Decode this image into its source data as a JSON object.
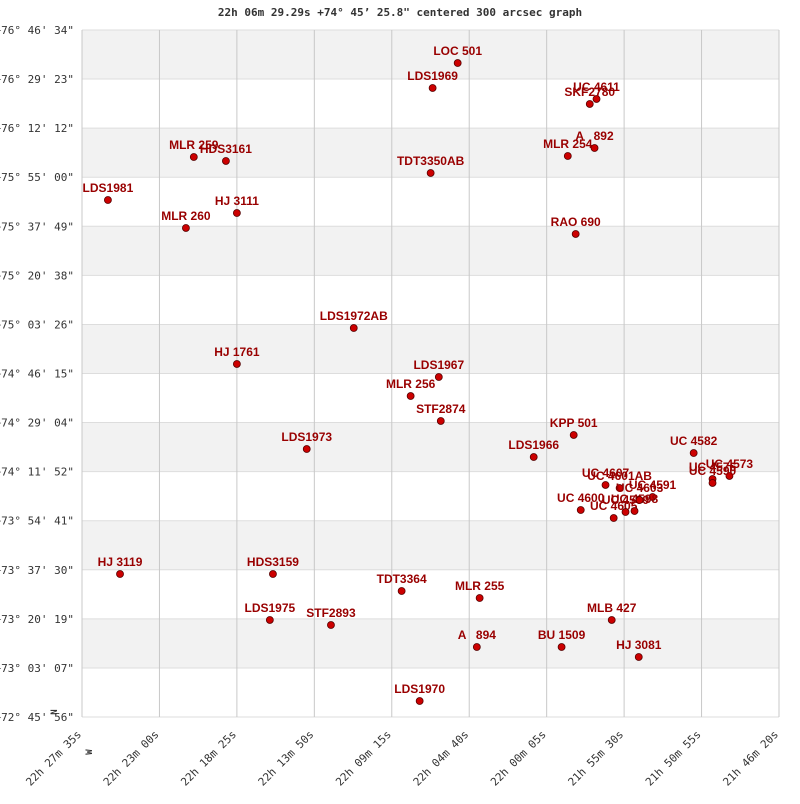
{
  "chart_data": {
    "type": "scatter",
    "title": "22h 06m 29.29s +74° 45’ 25.8\" centered 300 arcsec graph",
    "north_label": "N",
    "west_label": "W",
    "color": "#cc0000",
    "label_color": "#990000",
    "grid": true,
    "xlim": [
      80855,
      78380
    ],
    "xticks": [
      {
        "value": 80855,
        "label": "22h 27m 35s"
      },
      {
        "value": 80580,
        "label": "22h 23m 00s"
      },
      {
        "value": 80305,
        "label": "22h 18m 25s"
      },
      {
        "value": 80030,
        "label": "22h 13m 50s"
      },
      {
        "value": 79755,
        "label": "22h 09m 15s"
      },
      {
        "value": 79480,
        "label": "22h 04m 40s"
      },
      {
        "value": 79205,
        "label": "22h 00m 05s"
      },
      {
        "value": 78930,
        "label": "21h 55m 30s"
      },
      {
        "value": 78655,
        "label": "21h 50m 55s"
      },
      {
        "value": 78380,
        "label": "21h 46m 20s"
      }
    ],
    "ylim": [
      261956,
      276394
    ],
    "yticks": [
      {
        "value": 276394,
        "label": "+76° 46' 34\""
      },
      {
        "value": 275363,
        "label": "+76° 29' 23\""
      },
      {
        "value": 274332,
        "label": "+76° 12' 12\""
      },
      {
        "value": 273300,
        "label": "+75° 55' 00\""
      },
      {
        "value": 272269,
        "label": "+75° 37' 49\""
      },
      {
        "value": 271238,
        "label": "+75° 20' 38\""
      },
      {
        "value": 270206,
        "label": "+75° 03' 26\""
      },
      {
        "value": 269175,
        "label": "+74° 46' 15\""
      },
      {
        "value": 268144,
        "label": "+74° 29' 04\""
      },
      {
        "value": 267112,
        "label": "+74° 11' 52\""
      },
      {
        "value": 266081,
        "label": "+73° 54' 41\""
      },
      {
        "value": 265050,
        "label": "+73° 37' 30\""
      },
      {
        "value": 264019,
        "label": "+73° 20' 19\""
      },
      {
        "value": 262987,
        "label": "+73° 03' 07\""
      },
      {
        "value": 261956,
        "label": "+72° 45' 56\""
      }
    ],
    "labels": [
      "LOC 501",
      "LDS1969",
      "UC 4611",
      "SKF2780",
      "A   892",
      "MLR 254",
      "MLR 259",
      "HDS3161",
      "TDT3350AB",
      "LDS1981",
      "HJ 3111",
      "MLR 260",
      "RAO 690",
      "LDS1972AB",
      "HJ 1761",
      "LDS1967",
      "MLR 256",
      "STF2874",
      "KPP 501",
      "LDS1973",
      "LDS1966",
      "UC 4582",
      "UC 4607",
      "UC 4573",
      "UC 4576",
      "UC 4590",
      "UC 4591",
      "UC 4600",
      "UC 4605",
      "UC 4599",
      "UC 4598",
      "HJ 3119",
      "HDS3159",
      "TDT3364",
      "MLR 255",
      "LDS1975",
      "STF2893",
      "MLB 427",
      "A   894",
      "BU 1509",
      "HJ 3081",
      "LDS1970",
      "UC 4601AB",
      "UC 4603"
    ],
    "x": [
      79521,
      79610,
      79028,
      79052,
      79035,
      79130,
      80458,
      80344,
      79617,
      80763,
      80305,
      80486,
      79102,
      79890,
      80305,
      79588,
      79688,
      79581,
      79109,
      80057,
      79251,
      78683,
      78996,
      78556,
      78616,
      78616,
      78829,
      79084,
      78967,
      78925,
      78893,
      80720,
      80177,
      79720,
      79443,
      80188,
      79971,
      78974,
      79453,
      79152,
      78878,
      79656,
      78946,
      78875
    ],
    "values": [
      275700,
      275175,
      274944,
      274839,
      273914,
      273746,
      273725,
      273641,
      273389,
      272821,
      272548,
      272233,
      272107,
      270131,
      269375,
      269101,
      268702,
      268177,
      267883,
      267588,
      267420,
      267504,
      266832,
      267021,
      266958,
      266874,
      266580,
      266306,
      266138,
      266264,
      266285,
      264961,
      264961,
      264604,
      264457,
      263995,
      263889,
      263995,
      263427,
      263427,
      263217,
      262292,
      266769,
      266516
    ]
  }
}
